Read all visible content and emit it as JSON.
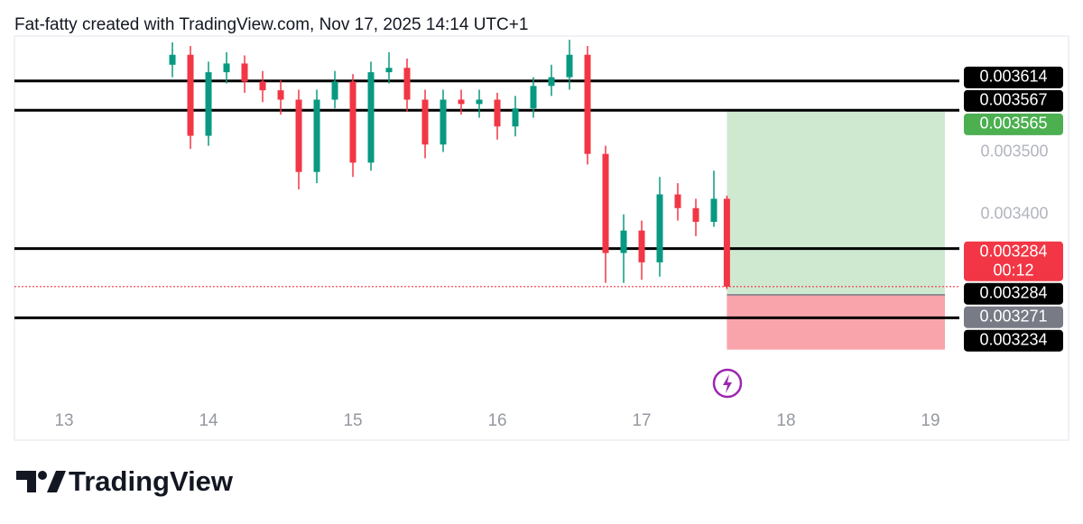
{
  "header": "Fat-fatty created with TradingView.com, Nov 17, 2025 14:14 UTC+1",
  "chart_data": {
    "type": "candlestick",
    "x": [
      13.75,
      13.875,
      14,
      14.125,
      14.25,
      14.375,
      14.5,
      14.625,
      14.75,
      14.875,
      15,
      15.125,
      15.25,
      15.375,
      15.5,
      15.625,
      15.75,
      15.875,
      16,
      16.125,
      16.25,
      16.375,
      16.5,
      16.625,
      16.75,
      16.875,
      17,
      17.125,
      17.25,
      17.375,
      17.5,
      17.59
    ],
    "open": [
      0.00364,
      0.003656,
      0.003526,
      0.003628,
      0.003642,
      0.003613,
      0.003599,
      0.003584,
      0.003468,
      0.003584,
      0.003613,
      0.003483,
      0.003628,
      0.003635,
      0.003584,
      0.003512,
      0.003584,
      0.003577,
      0.003584,
      0.003541,
      0.00357,
      0.003606,
      0.00362,
      0.003656,
      0.003497,
      0.003338,
      0.003374,
      0.003323,
      0.003432,
      0.00341,
      0.003388,
      0.003425
    ],
    "high": [
      0.003676,
      0.00367,
      0.003645,
      0.00366,
      0.003655,
      0.00363,
      0.003615,
      0.0036,
      0.0036,
      0.00363,
      0.003625,
      0.003645,
      0.00366,
      0.00365,
      0.0036,
      0.0036,
      0.0036,
      0.0036,
      0.003595,
      0.00359,
      0.00362,
      0.00364,
      0.00368,
      0.00367,
      0.00351,
      0.0034,
      0.00339,
      0.00346,
      0.00345,
      0.003425,
      0.00347,
      0.00343
    ],
    "low": [
      0.00362,
      0.003505,
      0.00351,
      0.00361,
      0.003595,
      0.00358,
      0.00356,
      0.00344,
      0.00345,
      0.00357,
      0.00346,
      0.00347,
      0.00361,
      0.003565,
      0.00349,
      0.0035,
      0.00356,
      0.003555,
      0.00352,
      0.003525,
      0.003555,
      0.00359,
      0.0036,
      0.00348,
      0.00329,
      0.00329,
      0.003295,
      0.0033,
      0.00339,
      0.003365,
      0.00338,
      0.00328
    ],
    "close": [
      0.003656,
      0.003526,
      0.003628,
      0.003642,
      0.003613,
      0.003599,
      0.003584,
      0.003468,
      0.003584,
      0.003613,
      0.003483,
      0.003628,
      0.003635,
      0.003584,
      0.003512,
      0.003584,
      0.003577,
      0.003584,
      0.003541,
      0.00357,
      0.003606,
      0.00362,
      0.003656,
      0.003497,
      0.003338,
      0.003374,
      0.003323,
      0.003432,
      0.00341,
      0.003388,
      0.003425,
      0.003284
    ],
    "up_color": "#089981",
    "down_color": "#f23645",
    "xlim": [
      12.656,
      19.2
    ],
    "xticks": [
      13,
      14,
      15,
      16,
      17,
      18,
      19
    ],
    "ylim": [
      0.0031,
      0.003686
    ],
    "yticks": [
      {
        "value": 0.0034,
        "label": "0.003400"
      },
      {
        "value": 0.0035,
        "label": "0.003500"
      }
    ],
    "levels": [
      0.003614,
      0.003567,
      0.003345,
      0.003234
    ],
    "current_price": 0.003284,
    "countdown": "00:12",
    "position": {
      "x": [
        17.59,
        19.1
      ],
      "entry": 0.003271,
      "target": 0.003565,
      "stop": 0.003183
    },
    "price_labels": [
      {
        "value": 0.003614,
        "label": "0.003614",
        "color": "#000000"
      },
      {
        "value": 0.003567,
        "label": "0.003567",
        "color": "#000000"
      },
      {
        "value": 0.003565,
        "label": "0.003565",
        "color": "#4caf50"
      },
      {
        "value": 0.003284,
        "label": "0.003284",
        "color": "#f23645"
      },
      {
        "value": 0.003284,
        "label": "0.003284",
        "color": "#000000"
      },
      {
        "value": 0.003271,
        "label": "0.003271",
        "color": "#787b86"
      },
      {
        "value": 0.003234,
        "label": "0.003234",
        "color": "#000000"
      }
    ]
  },
  "footer": "TradingView"
}
